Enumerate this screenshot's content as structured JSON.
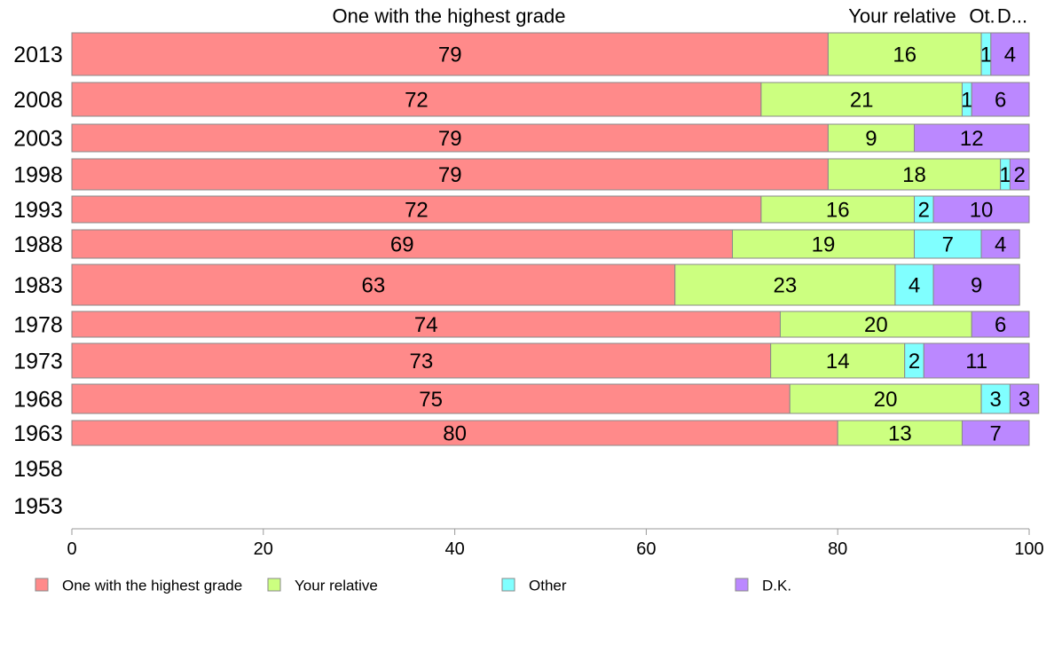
{
  "chart_data": {
    "type": "bar",
    "orientation": "horizontal",
    "stacked": true,
    "header_labels": [
      "One with the highest grade",
      "Your relative",
      "Ot.",
      "D..."
    ],
    "categories": [
      "2013",
      "2008",
      "2003",
      "1998",
      "1993",
      "1988",
      "1983",
      "1978",
      "1973",
      "1968",
      "1963",
      "1958",
      "1953"
    ],
    "series": [
      {
        "name": "One with the highest grade",
        "color": "#ff8a8a",
        "values": [
          79,
          72,
          79,
          79,
          72,
          69,
          63,
          74,
          73,
          75,
          80,
          null,
          null
        ]
      },
      {
        "name": "Your relative",
        "color": "#ccff80",
        "values": [
          16,
          21,
          9,
          18,
          16,
          19,
          23,
          20,
          14,
          20,
          13,
          null,
          null
        ]
      },
      {
        "name": "Other",
        "color": "#80ffff",
        "values": [
          1,
          1,
          null,
          1,
          2,
          7,
          4,
          null,
          2,
          3,
          null,
          null,
          null
        ]
      },
      {
        "name": "D.K.",
        "color": "#bb88ff",
        "values": [
          4,
          6,
          12,
          2,
          10,
          4,
          9,
          6,
          11,
          3,
          7,
          null,
          null
        ]
      }
    ],
    "xlim": [
      0,
      100
    ],
    "xticks": [
      0,
      20,
      40,
      60,
      80,
      100
    ],
    "grid": false,
    "legend_position": "bottom"
  }
}
